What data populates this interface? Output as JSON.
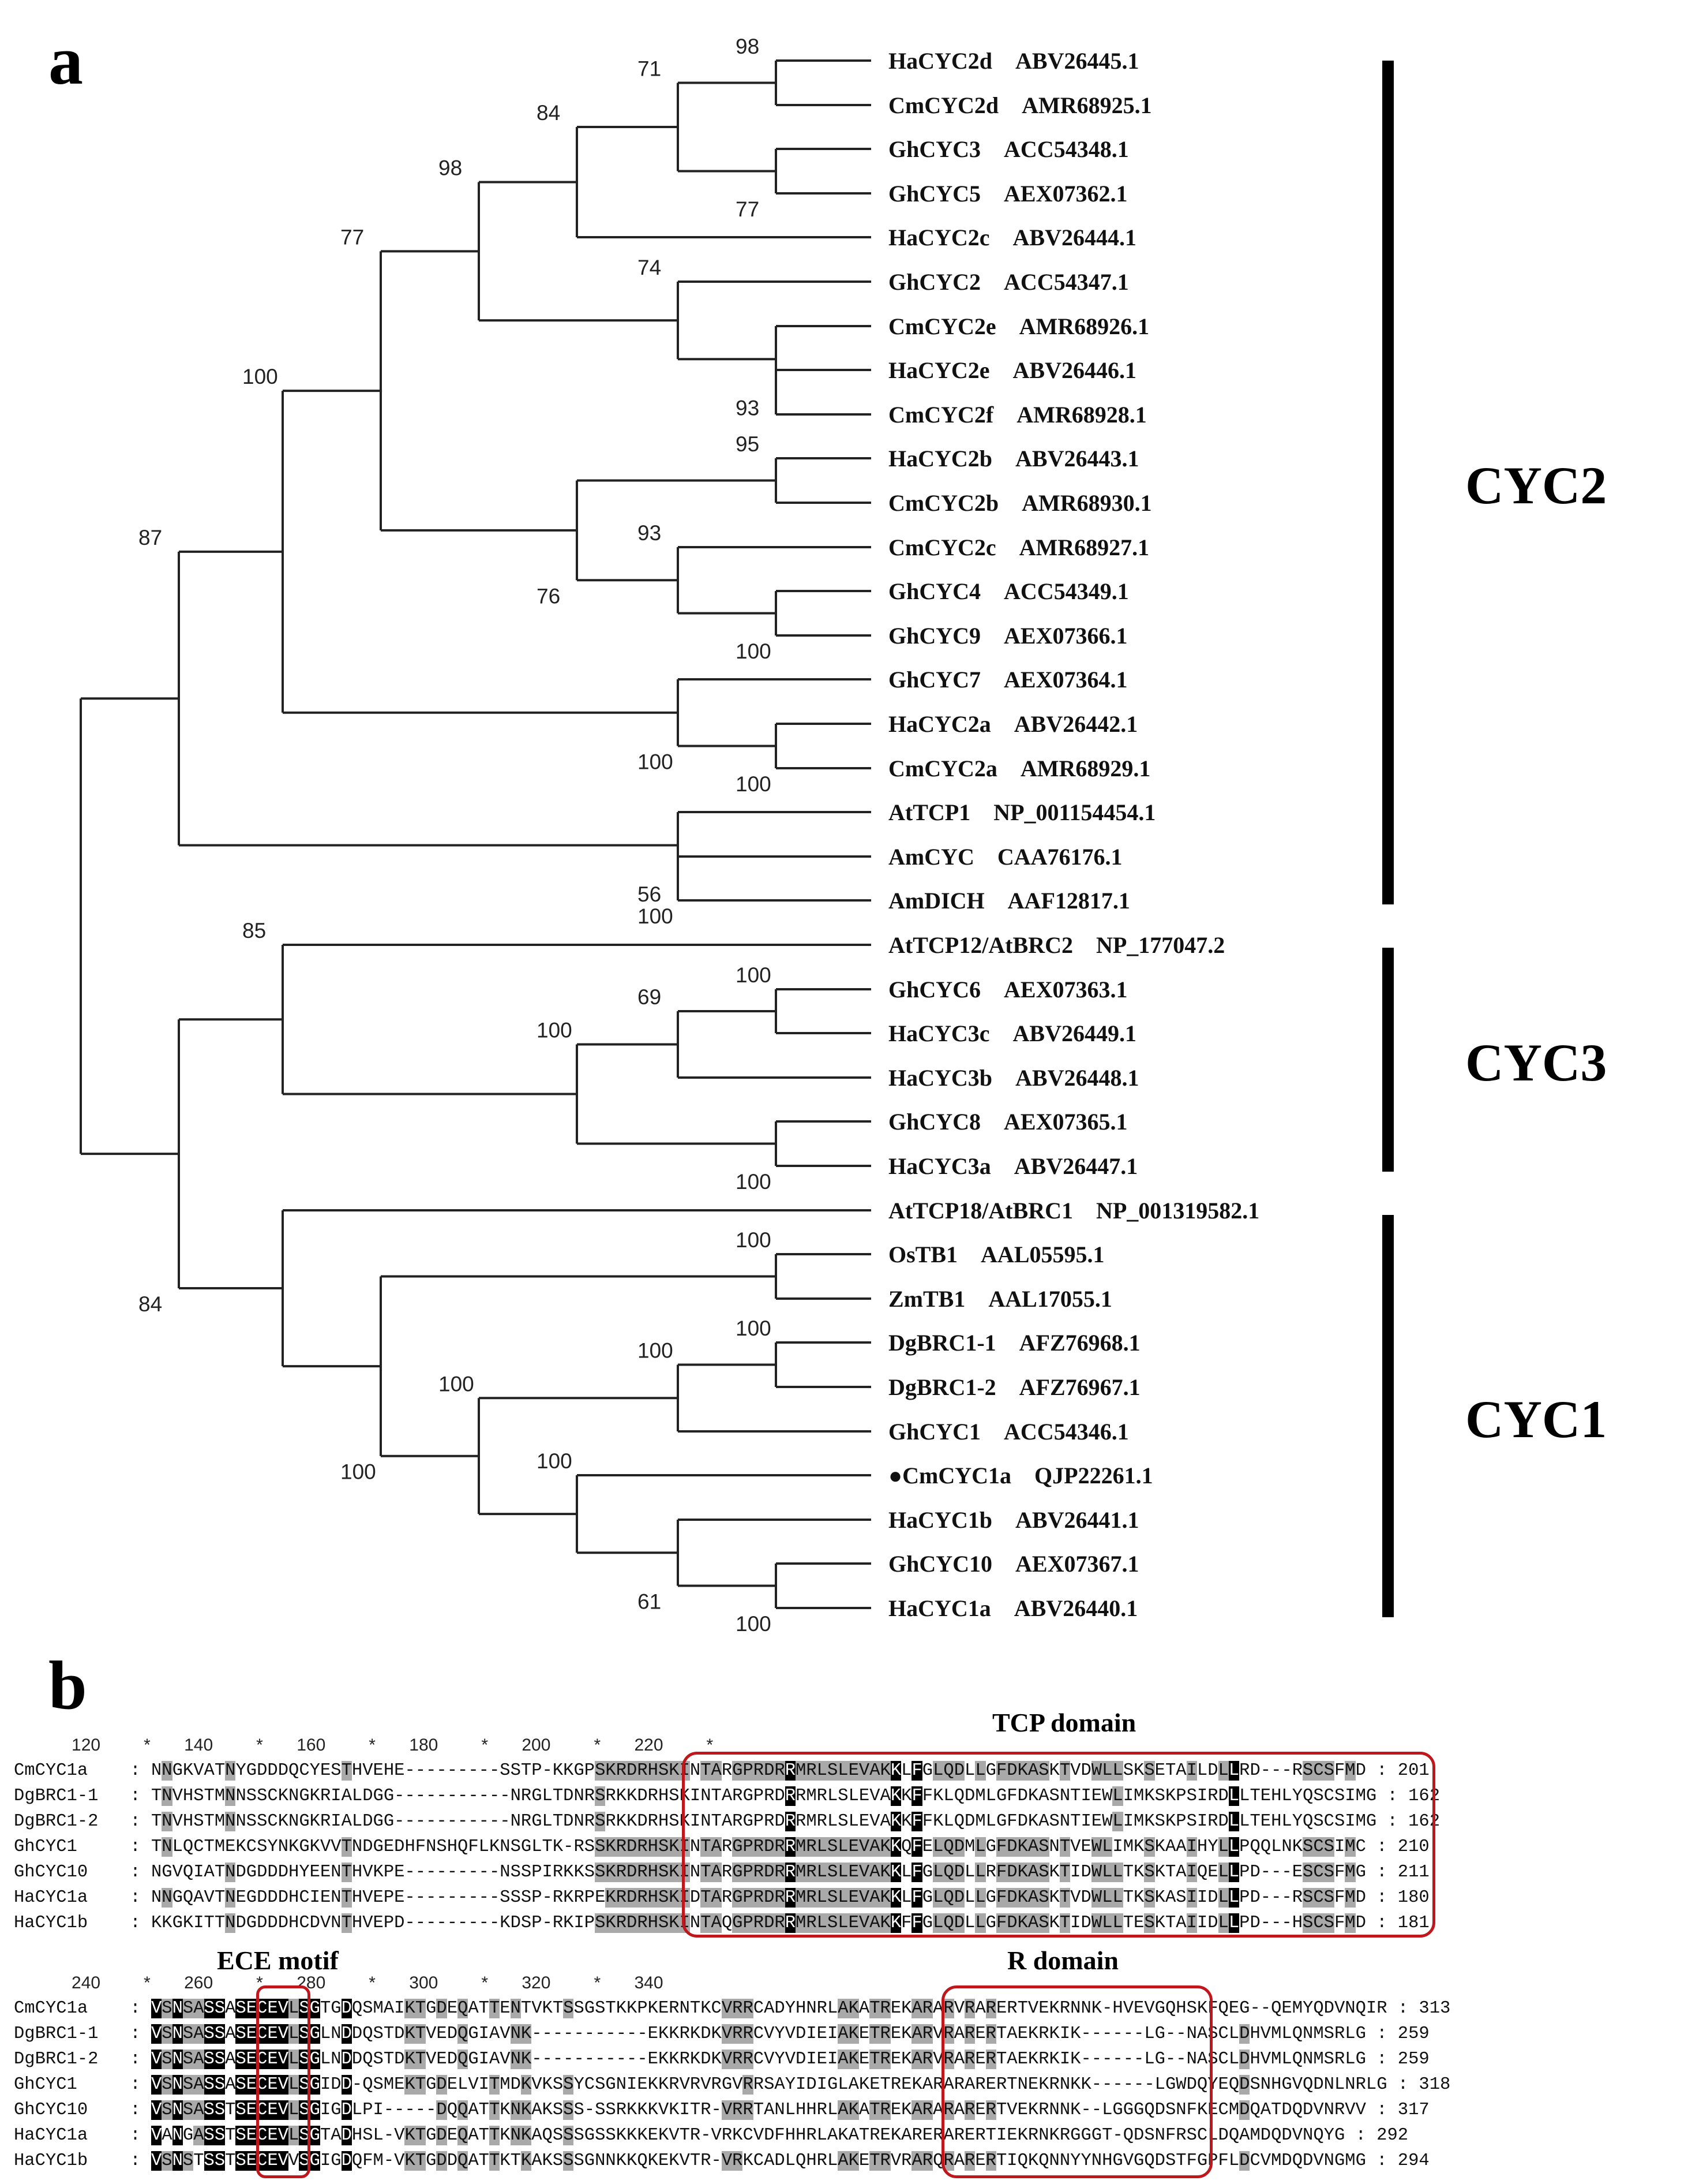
{
  "panel_a": "a",
  "panel_b": "b",
  "taxa": [
    {
      "name": "HaCYC2d",
      "acc": "ABV26445.1"
    },
    {
      "name": "CmCYC2d",
      "acc": "AMR68925.1"
    },
    {
      "name": "GhCYC3",
      "acc": "ACC54348.1"
    },
    {
      "name": "GhCYC5",
      "acc": "AEX07362.1"
    },
    {
      "name": "HaCYC2c",
      "acc": "ABV26444.1"
    },
    {
      "name": "GhCYC2",
      "acc": "ACC54347.1"
    },
    {
      "name": "CmCYC2e",
      "acc": "AMR68926.1"
    },
    {
      "name": "HaCYC2e",
      "acc": "ABV26446.1"
    },
    {
      "name": "CmCYC2f",
      "acc": "AMR68928.1"
    },
    {
      "name": "HaCYC2b",
      "acc": "ABV26443.1"
    },
    {
      "name": "CmCYC2b",
      "acc": "AMR68930.1"
    },
    {
      "name": "CmCYC2c",
      "acc": "AMR68927.1"
    },
    {
      "name": "GhCYC4",
      "acc": "ACC54349.1"
    },
    {
      "name": "GhCYC9",
      "acc": "AEX07366.1"
    },
    {
      "name": "GhCYC7",
      "acc": "AEX07364.1"
    },
    {
      "name": "HaCYC2a",
      "acc": "ABV26442.1"
    },
    {
      "name": "CmCYC2a",
      "acc": "AMR68929.1"
    },
    {
      "name": "AtTCP1",
      "acc": "NP_001154454.1"
    },
    {
      "name": "AmCYC",
      "acc": "CAA76176.1"
    },
    {
      "name": "AmDICH",
      "acc": "AAF12817.1"
    },
    {
      "name": "AtTCP12/AtBRC2",
      "acc": "NP_177047.2"
    },
    {
      "name": "GhCYC6",
      "acc": "AEX07363.1"
    },
    {
      "name": "HaCYC3c",
      "acc": "ABV26449.1"
    },
    {
      "name": "HaCYC3b",
      "acc": "ABV26448.1"
    },
    {
      "name": "GhCYC8",
      "acc": "AEX07365.1"
    },
    {
      "name": "HaCYC3a",
      "acc": "ABV26447.1"
    },
    {
      "name": "AtTCP18/AtBRC1",
      "acc": "NP_001319582.1"
    },
    {
      "name": "OsTB1",
      "acc": "AAL05595.1"
    },
    {
      "name": "ZmTB1",
      "acc": "AAL17055.1"
    },
    {
      "name": "DgBRC1-1",
      "acc": "AFZ76968.1"
    },
    {
      "name": "DgBRC1-2",
      "acc": "AFZ76967.1"
    },
    {
      "name": "GhCYC1",
      "acc": "ACC54346.1"
    },
    {
      "name": "●CmCYC1a",
      "acc": "QJP22261.1"
    },
    {
      "name": "HaCYC1b",
      "acc": "ABV26441.1"
    },
    {
      "name": "GhCYC10",
      "acc": "AEX07367.1"
    },
    {
      "name": "HaCYC1a",
      "acc": "ABV26440.1"
    }
  ],
  "bootstraps": [
    "98",
    "71",
    "77",
    "84",
    "98",
    "74",
    "93",
    "95",
    "93",
    "100",
    "76",
    "100",
    "100",
    "77",
    "56",
    "100",
    "100",
    "69",
    "100",
    "100",
    "100",
    "100",
    "100",
    "100",
    "100",
    "100",
    "61",
    "100",
    "85",
    "87",
    "100",
    "84"
  ],
  "clades": [
    "CYC2",
    "CYC3",
    "CYC1"
  ],
  "alignment": {
    "block1": {
      "ruler": "            120         *       140         *       160         *       180         *       200         *       220         *",
      "rows": [
        {
          "name": "CmCYC1a",
          "seq": "NNGKVATNYGDDDQCYESTHVEHE---------SSTP-KKGPSKRDRHSKINTARGPRDRRMRLSLEVAKKLFGLQDLLGFDKASKTVDWLLSKSETAILDLLRD---RSCSFMD",
          "end": "201"
        },
        {
          "name": "DgBRC1-1",
          "seq": "TNVHSTMNNSSCKNGKRIALDGG-----------NRGLTDNRSRKKDRHSKINTARGPRDRRMRLSLEVAKKFFKLQDMLGFDKASNTIEWLIMKSKPSIRDLLTEHLYQSCSIMG",
          "end": "162"
        },
        {
          "name": "DgBRC1-2",
          "seq": "TNVHSTMNNSSCKNGKRIALDGG-----------NRGLTDNRSRKKDRHSKINTARGPRDRRMRLSLEVAKKFFKLQDMLGFDKASNTIEWLIMKSKPSIRDLLTEHLYQSCSIMG",
          "end": "162"
        },
        {
          "name": "GhCYC1",
          "seq": "TNLQCTMEKCSYNKGKVVTNDGEDHFNSHQFLKNSGLTK-RSSKRDRHSKINTARGPRDRRMRLSLEVAKKQFELQDMLGFDKASNTVEWLIMKSKAAIHYLLPQQLNKSCSIMC",
          "end": "210"
        },
        {
          "name": "GhCYC10",
          "seq": "NGVQIATNDGDDDHYEENTHVKPE---------NSSPIRKKSSKRDRHSKINTARGPRDRRMRLSLEVAKKLFGLQDLLRFDKASKTIDWLLTKSKTAIQELLPD---ESCSFMG",
          "end": "211"
        },
        {
          "name": "HaCYC1a",
          "seq": "NNGQAVTNEGDDDHCIENTHVEPE---------SSSP-RKRPEKRDRHSKIDTARGPRDRRMRLSLEVAKKLFGLQDLLGFDKASKTVDWLLTKSKASIIDLLPD---RSCSFMD",
          "end": "180"
        },
        {
          "name": "HaCYC1b",
          "seq": "KKGKITTNDGDDDHCDVNTHVEPD---------KDSP-RKIPSKRDRHSKINTAQGPRDRRMRLSLEVAKKFFGLQDLLGFDKASKTIDWLLTESKTAIIDLLPD---HSCSFMD",
          "end": "181"
        }
      ]
    },
    "block2": {
      "ruler": "            240         *       260         *       280         *       300         *       320         *       340",
      "rows": [
        {
          "name": "CmCYC1a",
          "seq": "VSNSASSASECEVLSGTGDQSMAIKTGDEQATTENTVKTSSGSTKKPKERNTKCVRRCADYHNRLAKATREKARARVRARERTVEKRNNK-HVEVGQHSKFQEG--QEMYQDVNQIR",
          "end": "313"
        },
        {
          "name": "DgBRC1-1",
          "seq": "VSNSASSASECEVLSGLNDDQSTDKTVEDQGIAVNK-----------EKKRKDKVRRCVYVDIEIAKETREKARVRARERTAEKRKIK------LG--NASCLDHVMLQNMSRLG",
          "end": "259"
        },
        {
          "name": "DgBRC1-2",
          "seq": "VSNSASSASECEVLSGLNDDQSTDKTVEDQGIAVNK-----------EKKRKDKVRRCVYVDIEIAKETREKARVRARERTAEKRKIK------LG--NASCLDHVMLQNMSRLG",
          "end": "259"
        },
        {
          "name": "GhCYC1",
          "seq": "VSNSASSASECEVLSGIDD-QSMEKTGDELVITMDKVKSSYCSGNIEKKRVRVRGVRRSAYIDIGLAKETREKARARARERTNEKRNKK------LGWDQYEQDSNHGVQDNLNRLG",
          "end": "318"
        },
        {
          "name": "GhCYC10",
          "seq": "VSNSASSTSECEVLSGIGDLPI-----DQQATTKNKAKSSS-SSRKKKVKITR-VRRTANLHHRLAKATREKARARARERTVEKRNNK--LGGGQDSNFKECMDQATDQDVNRVV",
          "end": "317"
        },
        {
          "name": "HaCYC1a",
          "seq": "VANGASSTSECEVLSGTADHSL-VKTGDEQATTKNKAQSSSGSSKKKEKVTR-VRKCVDFHHRLAKATREKARERARERTIEKRNKRGGGT-QDSNFRSCLDQAMDQDVNQYG",
          "end": "292"
        },
        {
          "name": "HaCYC1b",
          "seq": "VSNSTSSTSECEVVSGIGDQFM-VKTGDDQATTKTKAKSSSGNNKKQKEKVTR-VRKCADLQHRLAKETRVRARQRARERTIQKQNNYYNHGVGQDSTFGPFLDCVMDQDVNGMG",
          "end": "294"
        }
      ]
    }
  },
  "domains": {
    "tcp": "TCP domain",
    "ece": "ECE motif",
    "r": "R domain"
  }
}
